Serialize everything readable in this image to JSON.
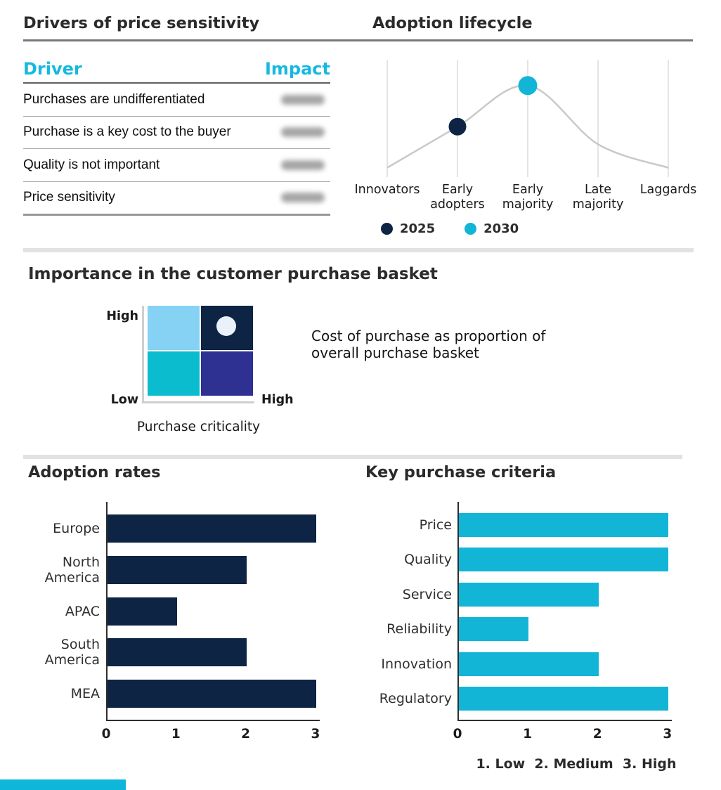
{
  "colors": {
    "navy": "#0d2444",
    "cyan": "#12b5d5",
    "table_header_cyan": "#15b9e0",
    "light_blue": "#85d2f5",
    "teal": "#0bbccf",
    "indigo": "#2e3191",
    "marker_light": "#e9f2fb",
    "curve_gray": "#c9c9c9",
    "grid_gray": "#e4e4e4",
    "accent_bar": "#0eb6d9"
  },
  "drivers": {
    "title": "Drivers of price sensitivity",
    "columns": [
      "Driver",
      "Impact"
    ],
    "rows": [
      "Purchases are undifferentiated",
      "Purchase is a key cost to the buyer",
      "Quality is not important",
      "Price sensitivity"
    ],
    "impact_values_redacted": true
  },
  "chart_data": [
    {
      "type": "scatter",
      "title": "Adoption lifecycle",
      "x_categories": [
        "Innovators",
        "Early adopters",
        "Early majority",
        "Late majority",
        "Laggards"
      ],
      "curve": {
        "shape": "bell",
        "y_fraction_by_stage": [
          0.08,
          0.43,
          0.78,
          0.28,
          0.08
        ],
        "color": "#c9c9c9"
      },
      "series": [
        {
          "name": "2025",
          "stage": "Early adopters",
          "color": "#0d2444"
        },
        {
          "name": "2030",
          "stage": "Early majority",
          "color": "#12b5d5"
        }
      ],
      "legend_position": "bottom",
      "grid": "vertical-gridlines"
    },
    {
      "type": "bar",
      "orientation": "horizontal",
      "title": "Adoption rates",
      "categories": [
        "Europe",
        "North America",
        "APAC",
        "South America",
        "MEA"
      ],
      "values": [
        3,
        2,
        1,
        2,
        3
      ],
      "xticks": [
        0,
        1,
        2,
        3
      ],
      "xlim": [
        0,
        3
      ],
      "bar_color": "#0d2444"
    },
    {
      "type": "bar",
      "orientation": "horizontal",
      "title": "Key purchase criteria",
      "categories": [
        "Price",
        "Quality",
        "Service",
        "Reliability",
        "Innovation",
        "Regulatory"
      ],
      "values": [
        3,
        3,
        2,
        1,
        2,
        3
      ],
      "xticks": [
        0,
        1,
        2,
        3
      ],
      "xlim": [
        0,
        3
      ],
      "bar_color": "#12b5d5",
      "footnote": "1. Low  2. Medium  3. High"
    },
    {
      "type": "quadrant",
      "title": "Importance in the customer purchase basket",
      "x_axis_label": "Purchase criticality",
      "x_max_label": "High",
      "y_max_label": "High",
      "y_min_label": "Low",
      "annotation": "Cost of purchase as proportion of overall purchase basket",
      "quadrants": [
        {
          "position": "top-left",
          "color": "#85d2f5",
          "marker": false
        },
        {
          "position": "top-right",
          "color": "#0d2444",
          "marker": true
        },
        {
          "position": "bottom-left",
          "color": "#0bbccf",
          "marker": false
        },
        {
          "position": "bottom-right",
          "color": "#2e3191",
          "marker": false
        }
      ],
      "marker_color": "#e9f2fb"
    }
  ]
}
